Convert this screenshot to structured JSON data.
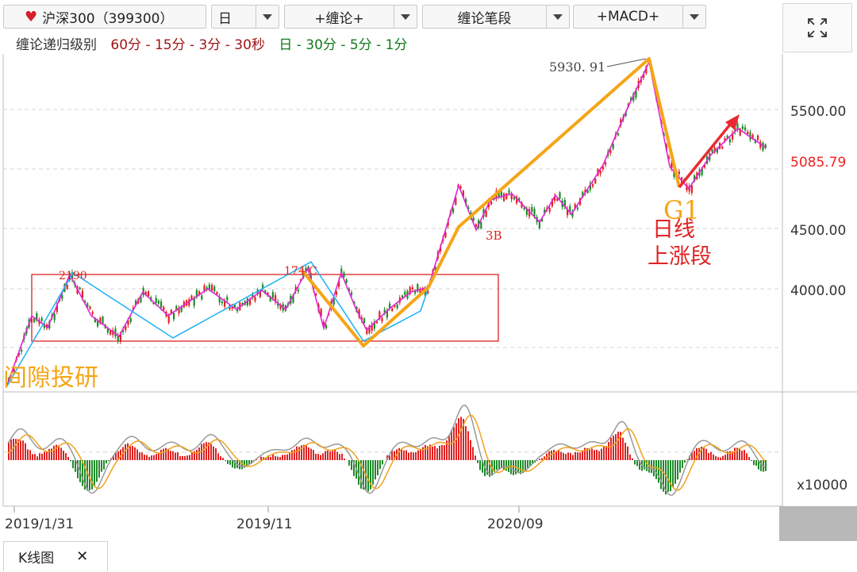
{
  "toolbar": {
    "symbol": "沪深300（399300）",
    "period": "日",
    "chanlun": "+缠论+",
    "chanlun_segment": "缠论笔段",
    "indicator": "+MACD+"
  },
  "levels": {
    "title": "缠论递归级别",
    "red_levels": "60分 - 15分 - 3分 - 30秒",
    "green_levels": "日 - 30分 - 5分 - 1分"
  },
  "chart_data": {
    "type": "candlestick",
    "y_ticks": [
      "5500.00",
      "4500.00",
      "4000.00"
    ],
    "y_tick_values": [
      5500,
      4500,
      4000
    ],
    "price_label": "5085.79",
    "price_value": 5085.79,
    "x_ticks": [
      "2019/1/31",
      "2019/11",
      "2020/09"
    ],
    "annotations": {
      "high": "5930. 91",
      "low_left": "2190",
      "mid": "174 C",
      "b3": "3B",
      "g1": "G1",
      "trend_line1": "日线",
      "trend_line2": "上涨段",
      "watermark": "间隙投研"
    },
    "macd_unit": "x10000"
  },
  "bottom": {
    "tab": "K线图",
    "close": "✕"
  }
}
